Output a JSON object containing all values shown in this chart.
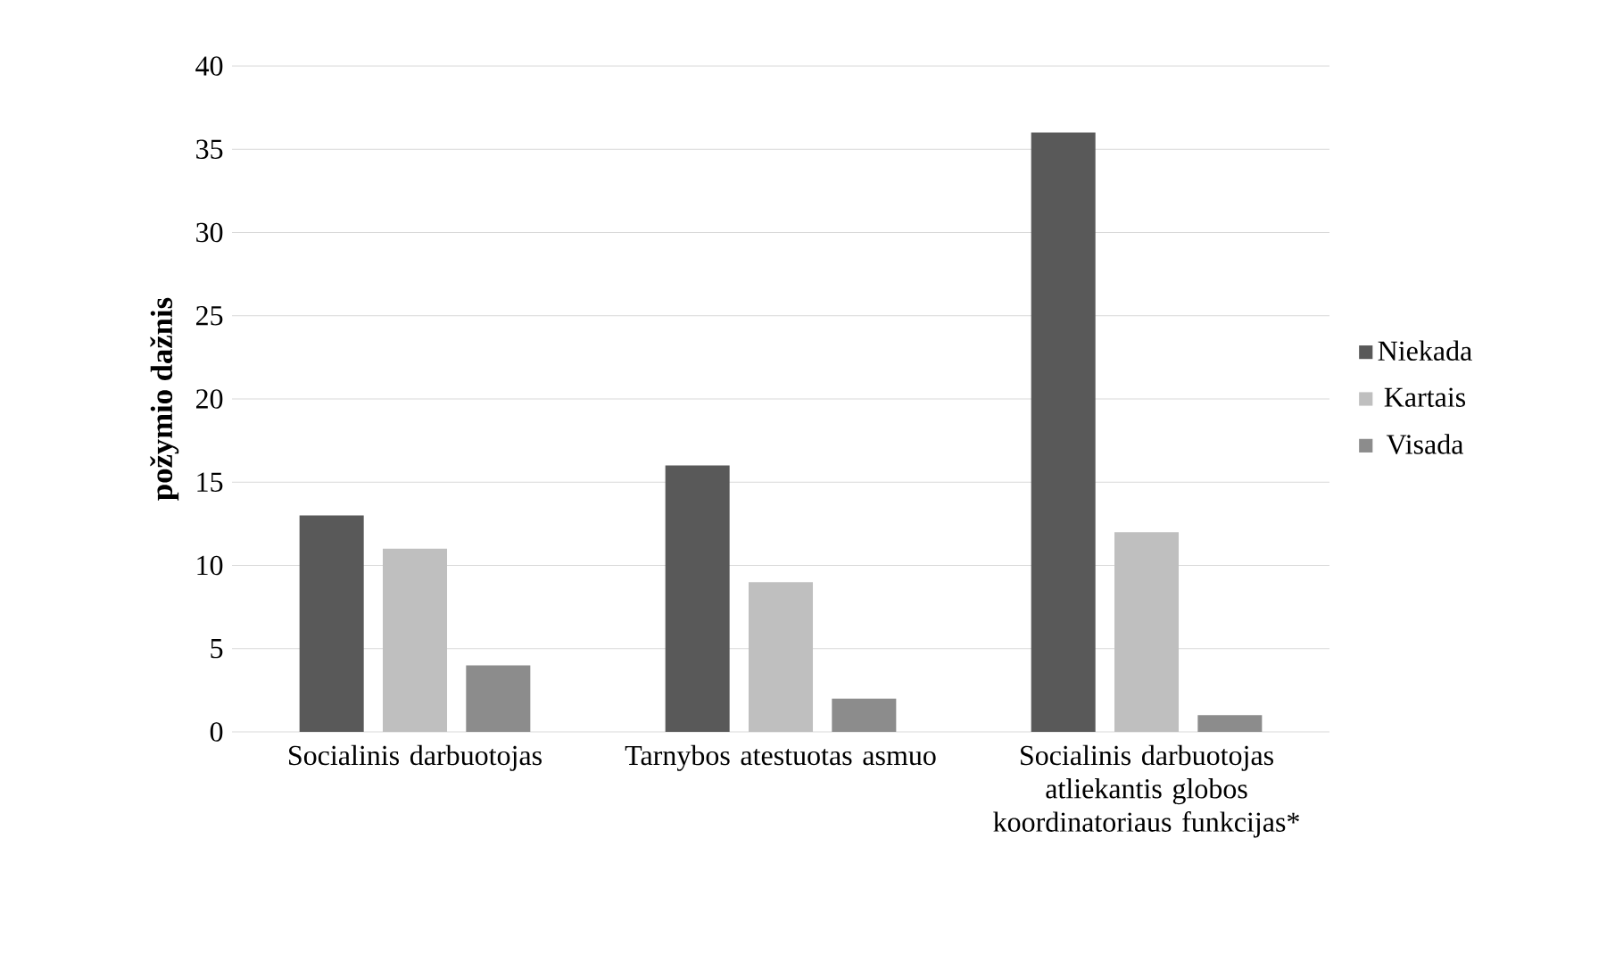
{
  "chart_data": {
    "type": "bar",
    "ylabel": "požymio dažnis",
    "categories": [
      "Socialinis darbuotojas",
      "Tarnybos atestuotas asmuo",
      "Socialinis darbuotojas atliekantis globos koordinatoriaus funkcijas*"
    ],
    "series": [
      {
        "name": "Niekada",
        "color": "#595959",
        "values": [
          13,
          16,
          36
        ]
      },
      {
        "name": "Kartais",
        "color": "#bfbfbf",
        "values": [
          11,
          9,
          12
        ]
      },
      {
        "name": "Visada",
        "color": "#8c8c8c",
        "values": [
          4,
          2,
          1
        ]
      }
    ],
    "ylim": [
      0,
      40
    ],
    "yticks": [
      0,
      5,
      10,
      15,
      20,
      25,
      30,
      35,
      40
    ],
    "grid": "y",
    "legend": "right"
  }
}
